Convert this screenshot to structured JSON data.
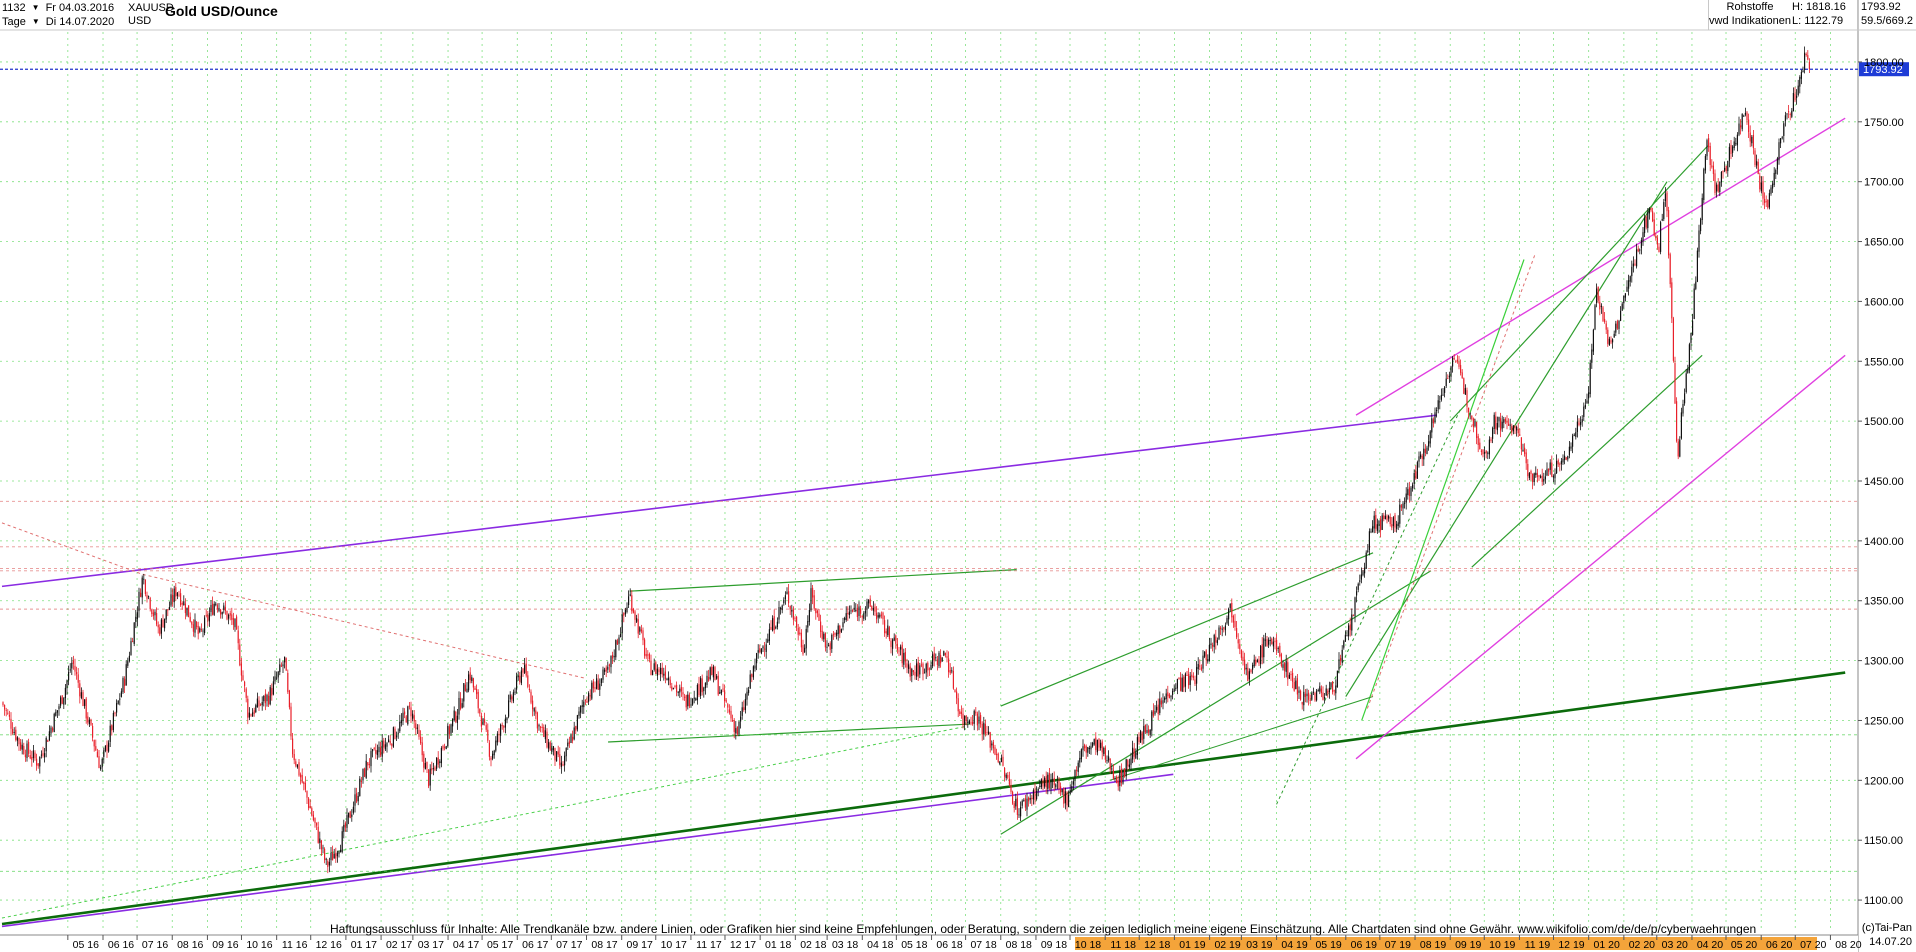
{
  "header": {
    "bar_count": "1132",
    "from_date": "Fr 04.03.2016",
    "timeframe": "Tage",
    "to_date": "Di 14.07.2020",
    "symbol": "XAUUSD",
    "currency": "USD",
    "title": "Gold USD/Ounce",
    "category": "Rohstoffe",
    "source": "vwd Indikationen",
    "high": "H: 1818.16",
    "low": "L: 1122.79",
    "last": "1793.92",
    "scale": "59.5/669.2"
  },
  "footer": {
    "disclaimer": "Haftungsausschluss für Inhalte: Alle Trendkanäle bzw. andere Linien, oder Grafiken hier sind keine Empfehlungen, oder Beratung, sondern die zeigen lediglich meine eigene Einschätzung. Alle Chartdaten sind ohne Gewähr.  www.wikifolio.com/de/de/p/cyberwaehrungen",
    "copyright": "(c)Tai-Pan",
    "end_date": "14.07.20"
  },
  "chart_data": {
    "type": "candlestick",
    "title": "Gold USD/Ounce",
    "ylim": [
      1075,
      1825
    ],
    "y_ticks": [
      1100,
      1150,
      1200,
      1250,
      1300,
      1350,
      1400,
      1450,
      1500,
      1550,
      1600,
      1650,
      1700,
      1750,
      1800
    ],
    "y_tick_labels": [
      "1100.00",
      "1150.00",
      "1200.00",
      "1250.00",
      "1300.00",
      "1350.00",
      "1400.00",
      "1450.00",
      "1500.00",
      "1550.00",
      "1600.00",
      "1650.00",
      "1700.00",
      "1750.00",
      "1800.00"
    ],
    "last_price_label": "1793.92",
    "last_price": 1793.92,
    "x_labels": [
      "05 16",
      "06 16",
      "07 16",
      "08 16",
      "09 16",
      "10 16",
      "11 16",
      "12 16",
      "01 17",
      "02 17",
      "03 17",
      "04 17",
      "05 17",
      "06 17",
      "07 17",
      "08 17",
      "09 17",
      "10 17",
      "11 17",
      "12 17",
      "01 18",
      "02 18",
      "03 18",
      "04 18",
      "05 18",
      "06 18",
      "07 18",
      "08 18",
      "09 18",
      "10 18",
      "11 18",
      "12 18",
      "01 19",
      "02 19",
      "03 19",
      "04 19",
      "05 19",
      "06 19",
      "07 19",
      "08 19",
      "09 19",
      "10 19",
      "11 19",
      "12 19",
      "01 20",
      "02 20",
      "03 20",
      "04 20",
      "05 20",
      "06 20",
      "07 20",
      "08 20"
    ],
    "price_path": [
      [
        "2016-03-04",
        1265
      ],
      [
        "2016-03-20",
        1230
      ],
      [
        "2016-04-05",
        1215
      ],
      [
        "2016-04-28",
        1275
      ],
      [
        "2016-05-05",
        1300
      ],
      [
        "2016-05-30",
        1210
      ],
      [
        "2016-06-20",
        1285
      ],
      [
        "2016-07-06",
        1370
      ],
      [
        "2016-07-20",
        1325
      ],
      [
        "2016-08-05",
        1360
      ],
      [
        "2016-08-25",
        1320
      ],
      [
        "2016-09-08",
        1350
      ],
      [
        "2016-09-25",
        1330
      ],
      [
        "2016-10-07",
        1255
      ],
      [
        "2016-10-25",
        1270
      ],
      [
        "2016-11-08",
        1300
      ],
      [
        "2016-11-15",
        1225
      ],
      [
        "2016-12-01",
        1175
      ],
      [
        "2016-12-15",
        1128
      ],
      [
        "2016-12-28",
        1150
      ],
      [
        "2017-01-20",
        1215
      ],
      [
        "2017-02-10",
        1235
      ],
      [
        "2017-02-27",
        1260
      ],
      [
        "2017-03-15",
        1200
      ],
      [
        "2017-04-10",
        1260
      ],
      [
        "2017-04-20",
        1290
      ],
      [
        "2017-05-09",
        1220
      ],
      [
        "2017-06-06",
        1295
      ],
      [
        "2017-06-20",
        1245
      ],
      [
        "2017-07-10",
        1210
      ],
      [
        "2017-07-31",
        1270
      ],
      [
        "2017-08-20",
        1290
      ],
      [
        "2017-09-08",
        1355
      ],
      [
        "2017-09-25",
        1295
      ],
      [
        "2017-10-10",
        1290
      ],
      [
        "2017-10-27",
        1265
      ],
      [
        "2017-11-20",
        1290
      ],
      [
        "2017-12-12",
        1240
      ],
      [
        "2017-12-28",
        1300
      ],
      [
        "2018-01-25",
        1355
      ],
      [
        "2018-02-08",
        1310
      ],
      [
        "2018-02-15",
        1355
      ],
      [
        "2018-03-01",
        1310
      ],
      [
        "2018-03-20",
        1340
      ],
      [
        "2018-04-10",
        1345
      ],
      [
        "2018-04-25",
        1320
      ],
      [
        "2018-05-15",
        1290
      ],
      [
        "2018-06-14",
        1305
      ],
      [
        "2018-06-28",
        1250
      ],
      [
        "2018-07-10",
        1255
      ],
      [
        "2018-07-30",
        1220
      ],
      [
        "2018-08-16",
        1175
      ],
      [
        "2018-09-10",
        1200
      ],
      [
        "2018-09-28",
        1185
      ],
      [
        "2018-10-12",
        1225
      ],
      [
        "2018-10-25",
        1230
      ],
      [
        "2018-11-13",
        1200
      ],
      [
        "2018-12-05",
        1240
      ],
      [
        "2018-12-31",
        1280
      ],
      [
        "2019-01-18",
        1285
      ],
      [
        "2019-02-20",
        1345
      ],
      [
        "2019-03-07",
        1285
      ],
      [
        "2019-03-25",
        1320
      ],
      [
        "2019-04-23",
        1270
      ],
      [
        "2019-05-20",
        1275
      ],
      [
        "2019-06-05",
        1330
      ],
      [
        "2019-06-25",
        1415
      ],
      [
        "2019-07-15",
        1415
      ],
      [
        "2019-08-05",
        1465
      ],
      [
        "2019-08-20",
        1510
      ],
      [
        "2019-09-04",
        1555
      ],
      [
        "2019-09-20",
        1505
      ],
      [
        "2019-10-01",
        1470
      ],
      [
        "2019-10-10",
        1500
      ],
      [
        "2019-10-28",
        1495
      ],
      [
        "2019-11-12",
        1450
      ],
      [
        "2019-12-10",
        1465
      ],
      [
        "2019-12-31",
        1520
      ],
      [
        "2020-01-08",
        1610
      ],
      [
        "2020-01-20",
        1560
      ],
      [
        "2020-02-24",
        1680
      ],
      [
        "2020-03-02",
        1640
      ],
      [
        "2020-03-09",
        1700
      ],
      [
        "2020-03-19",
        1470
      ],
      [
        "2020-04-01",
        1580
      ],
      [
        "2020-04-14",
        1740
      ],
      [
        "2020-04-22",
        1690
      ],
      [
        "2020-05-18",
        1760
      ],
      [
        "2020-06-05",
        1675
      ],
      [
        "2020-06-22",
        1750
      ],
      [
        "2020-07-06",
        1785
      ],
      [
        "2020-07-10",
        1810
      ],
      [
        "2020-07-14",
        1794
      ]
    ]
  }
}
